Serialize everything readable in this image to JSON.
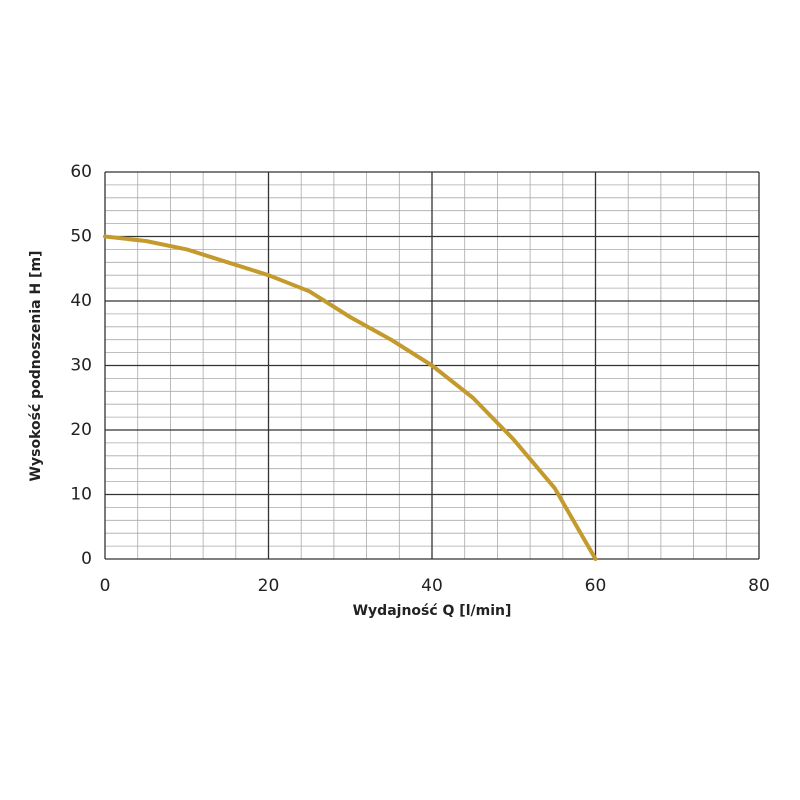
{
  "chart_data": {
    "type": "line",
    "x_label": "Wydajność Q [l/min]",
    "y_label": "Wysokość podnoszenia H [m]",
    "x": [
      0,
      5,
      10,
      15,
      20,
      25,
      30,
      35,
      40,
      45,
      50,
      55,
      60
    ],
    "series": [
      {
        "color": "#c49a2c",
        "values": [
          50,
          49.3,
          48,
          46,
          44,
          41.5,
          37.5,
          34,
          30,
          25,
          18.5,
          11,
          0
        ]
      }
    ],
    "xlim": [
      0,
      80
    ],
    "ylim": [
      0,
      60
    ],
    "xticks": [
      0,
      20,
      40,
      60,
      80
    ],
    "yticks": [
      0,
      10,
      20,
      30,
      40,
      50,
      60
    ],
    "minor_xticks": [
      4,
      8,
      12,
      16,
      24,
      28,
      32,
      36,
      44,
      48,
      52,
      56,
      64,
      68,
      72,
      76
    ],
    "minor_yticks": [
      2,
      4,
      6,
      8,
      12,
      14,
      16,
      18,
      22,
      24,
      26,
      28,
      32,
      34,
      36,
      38,
      42,
      44,
      46,
      48,
      52,
      54,
      56,
      58
    ],
    "grid": true
  }
}
